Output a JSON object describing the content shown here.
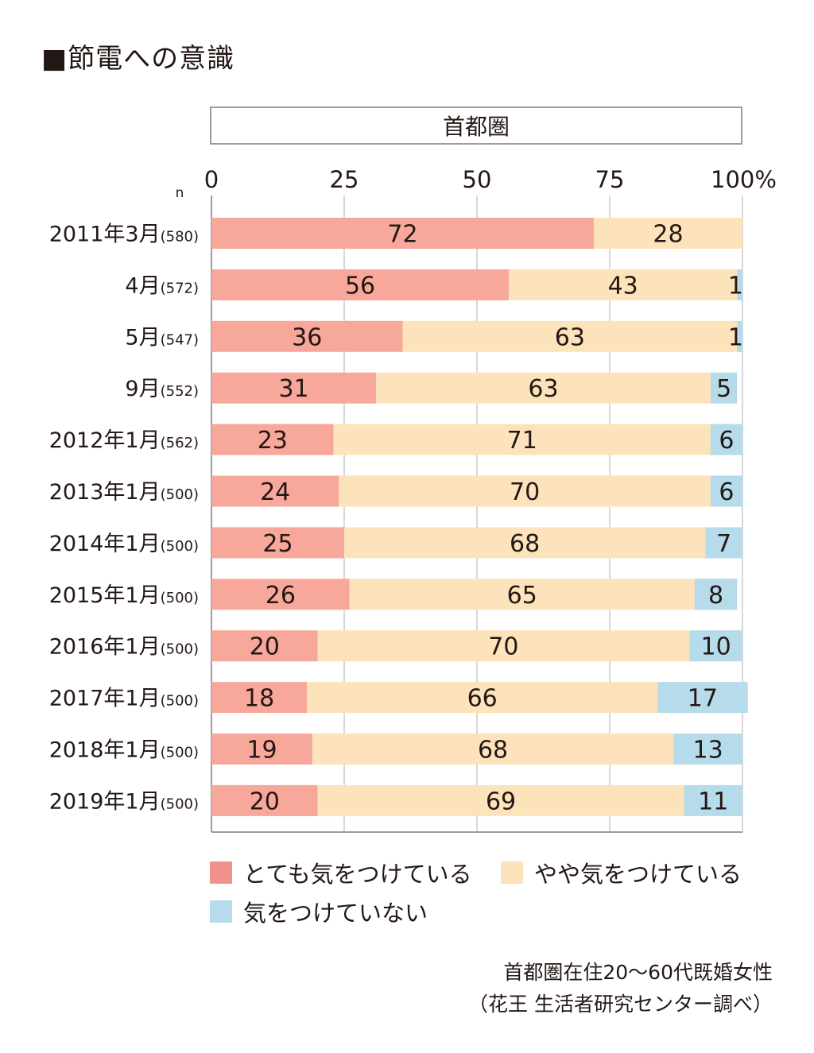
{
  "title": "■節電への意識",
  "panel_label": "首都圏",
  "colors": {
    "very": "#f8a79b",
    "somewhat": "#fde3bb",
    "not": "#b6dbea",
    "very_legend": "#f0928a",
    "grid": "#bdbdbd",
    "axis": "#9d9d9d",
    "text": "#231815"
  },
  "legend": [
    {
      "key": "very",
      "label": "とても気をつけている"
    },
    {
      "key": "somewhat",
      "label": "やや気をつけている"
    },
    {
      "key": "not",
      "label": "気をつけていない"
    }
  ],
  "source": [
    "首都圏在住20〜60代既婚女性",
    "（花王 生活者研究センター調べ）"
  ],
  "chart_data": {
    "type": "bar",
    "orientation": "horizontal",
    "stacked": true,
    "n_label": "n",
    "xlim": [
      0,
      100
    ],
    "xticks": [
      "0",
      "25",
      "50",
      "75",
      "100%"
    ],
    "xtick_values": [
      0,
      25,
      50,
      75,
      100
    ],
    "grid": true,
    "categories": [
      {
        "label": "2011年3月",
        "n": "(580)"
      },
      {
        "label": "4月",
        "n": "(572)"
      },
      {
        "label": "5月",
        "n": "(547)"
      },
      {
        "label": "9月",
        "n": "(552)"
      },
      {
        "label": "2012年1月",
        "n": "(562)"
      },
      {
        "label": "2013年1月",
        "n": "(500)"
      },
      {
        "label": "2014年1月",
        "n": "(500)"
      },
      {
        "label": "2015年1月",
        "n": "(500)"
      },
      {
        "label": "2016年1月",
        "n": "(500)"
      },
      {
        "label": "2017年1月",
        "n": "(500)"
      },
      {
        "label": "2018年1月",
        "n": "(500)"
      },
      {
        "label": "2019年1月",
        "n": "(500)"
      }
    ],
    "series": [
      {
        "name": "とても気をつけている",
        "key": "very",
        "values": [
          72,
          56,
          36,
          31,
          23,
          24,
          25,
          26,
          20,
          18,
          19,
          20
        ]
      },
      {
        "name": "やや気をつけている",
        "key": "somewhat",
        "values": [
          28,
          43,
          63,
          63,
          71,
          70,
          68,
          65,
          70,
          66,
          68,
          69
        ]
      },
      {
        "name": "気をつけていない",
        "key": "not",
        "values": [
          0,
          1,
          1,
          5,
          6,
          6,
          7,
          8,
          10,
          17,
          13,
          11
        ]
      }
    ],
    "data_labels": [
      [
        "72",
        "28",
        ""
      ],
      [
        "56",
        "43",
        "1"
      ],
      [
        "36",
        "63",
        "1"
      ],
      [
        "31",
        "63",
        "5"
      ],
      [
        "23",
        "71",
        "6"
      ],
      [
        "24",
        "70",
        "6"
      ],
      [
        "25",
        "68",
        "7"
      ],
      [
        "26",
        "65",
        "8"
      ],
      [
        "20",
        "70",
        "10"
      ],
      [
        "18",
        "66",
        "17"
      ],
      [
        "19",
        "68",
        "13"
      ],
      [
        "20",
        "69",
        "11"
      ]
    ]
  }
}
